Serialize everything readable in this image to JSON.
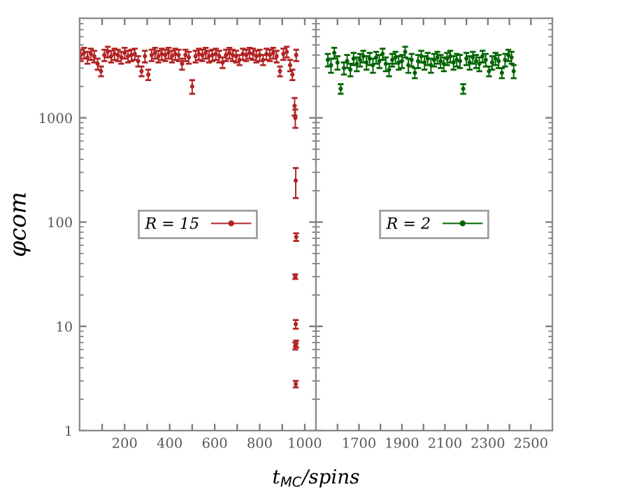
{
  "chart_data": [
    {
      "type": "scatter",
      "ylabel": "φcom",
      "xlabel": "t$_{MC}$/spins",
      "log": "y",
      "ylim": [
        1,
        9000
      ],
      "yticks": [
        1,
        10,
        100,
        1000
      ],
      "xlim": [
        0,
        1050
      ],
      "xticks": [
        {
          "value": 100,
          "label": null
        },
        200,
        {
          "value": 300,
          "label": null
        },
        400,
        {
          "value": 500,
          "label": null
        },
        600,
        {
          "value": 700,
          "label": null
        },
        800,
        {
          "value": 900,
          "label": null
        },
        1000
      ],
      "legend": "center",
      "marker": "circle",
      "series": [
        {
          "name": "R = 15",
          "color": "#b22222",
          "x": [
            5,
            20,
            35,
            50,
            65,
            80,
            95,
            110,
            125,
            140,
            155,
            170,
            185,
            200,
            215,
            230,
            245,
            260,
            275,
            290,
            305,
            320,
            335,
            350,
            365,
            380,
            395,
            410,
            425,
            440,
            455,
            470,
            485,
            500,
            515,
            530,
            545,
            560,
            575,
            590,
            605,
            620,
            635,
            650,
            665,
            680,
            695,
            710,
            725,
            740,
            755,
            770,
            785,
            800,
            815,
            830,
            845,
            860,
            875,
            890,
            905,
            920,
            935,
            945,
            955,
            958,
            960,
            962,
            958,
            960,
            962,
            958,
            960,
            962
          ],
          "values": [
            4000,
            4200,
            3800,
            4100,
            3900,
            3300,
            2800,
            4000,
            4300,
            3900,
            4100,
            4000,
            3800,
            4200,
            3900,
            4000,
            4100,
            3500,
            2800,
            3900,
            2600,
            4000,
            4200,
            3900,
            4100,
            4000,
            4200,
            3900,
            4100,
            4000,
            3300,
            4000,
            3800,
            2000,
            3900,
            4100,
            4000,
            4200,
            3900,
            4000,
            4100,
            3900,
            3400,
            4000,
            4200,
            4000,
            3900,
            3600,
            4100,
            4000,
            4200,
            4100,
            3900,
            4000,
            3600,
            4100,
            4000,
            4200,
            3900,
            2800,
            4100,
            4300,
            3200,
            2600,
            1300,
            1000,
            250,
            72,
            30,
            10.5,
            6.8,
            6.5,
            2.8,
            4000
          ],
          "errors": [
            500,
            500,
            500,
            500,
            500,
            400,
            300,
            500,
            500,
            500,
            500,
            500,
            500,
            500,
            500,
            500,
            500,
            400,
            300,
            500,
            300,
            500,
            500,
            500,
            500,
            500,
            500,
            500,
            500,
            500,
            400,
            500,
            500,
            300,
            500,
            500,
            500,
            500,
            500,
            500,
            500,
            500,
            400,
            500,
            500,
            500,
            500,
            400,
            500,
            500,
            500,
            500,
            500,
            500,
            400,
            500,
            500,
            500,
            500,
            300,
            500,
            500,
            400,
            300,
            250,
            200,
            80,
            6,
            1.5,
            1,
            0.5,
            0.5,
            0.2,
            500
          ]
        }
      ]
    },
    {
      "type": "scatter",
      "log": "y",
      "ylim": [
        1,
        9000
      ],
      "yticks": [
        1,
        10,
        100,
        1000
      ],
      "xlim": [
        1500,
        2600
      ],
      "tick_labels": "x",
      "xticks": [
        {
          "value": 1600,
          "label": null
        },
        1700,
        {
          "value": 1800,
          "label": null
        },
        1900,
        {
          "value": 2000,
          "label": null
        },
        2100,
        {
          "value": 2200,
          "label": null
        },
        2300,
        {
          "value": 2400,
          "label": null
        },
        2500
      ],
      "legend": "center",
      "marker": "circle",
      "series": [
        {
          "name": "R = 2",
          "color": "#006400",
          "x": [
            1555,
            1570,
            1585,
            1600,
            1615,
            1630,
            1645,
            1660,
            1675,
            1690,
            1705,
            1720,
            1735,
            1750,
            1765,
            1780,
            1795,
            1810,
            1825,
            1840,
            1855,
            1870,
            1885,
            1900,
            1915,
            1930,
            1945,
            1960,
            1975,
            1990,
            2005,
            2020,
            2035,
            2050,
            2065,
            2080,
            2095,
            2110,
            2125,
            2140,
            2155,
            2170,
            2185,
            2200,
            2215,
            2230,
            2245,
            2260,
            2275,
            2290,
            2305,
            2320,
            2335,
            2350,
            2365,
            2380,
            2395,
            2410,
            2420
          ],
          "values": [
            3600,
            3200,
            4200,
            3400,
            1900,
            3000,
            3500,
            2900,
            3700,
            3300,
            3600,
            3900,
            3400,
            3700,
            3200,
            3800,
            3500,
            4100,
            3300,
            2900,
            3600,
            3800,
            3400,
            3500,
            4300,
            3200,
            3600,
            2700,
            3500,
            3900,
            3400,
            3700,
            3200,
            3600,
            3800,
            3500,
            3300,
            3700,
            3900,
            3400,
            3600,
            3500,
            1900,
            3700,
            3400,
            3800,
            3500,
            3300,
            3900,
            3600,
            2800,
            3400,
            3700,
            3500,
            2700,
            3600,
            4000,
            3800,
            2800
          ],
          "errors": [
            500,
            500,
            500,
            500,
            200,
            400,
            500,
            400,
            500,
            500,
            500,
            500,
            500,
            500,
            500,
            500,
            500,
            500,
            500,
            400,
            500,
            500,
            500,
            500,
            500,
            500,
            500,
            300,
            500,
            500,
            500,
            500,
            500,
            500,
            500,
            500,
            500,
            500,
            500,
            500,
            500,
            500,
            200,
            500,
            500,
            500,
            500,
            500,
            500,
            500,
            300,
            500,
            500,
            500,
            300,
            500,
            500,
            500,
            400
          ]
        }
      ]
    }
  ]
}
